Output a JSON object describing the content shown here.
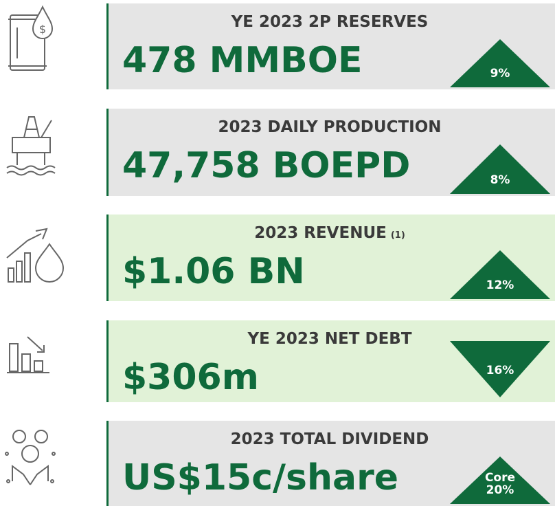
{
  "metrics": [
    {
      "title": "YE 2023 2P RESERVES",
      "value": "478 MMBOE",
      "direction": "up",
      "badge_lines": [
        "9%"
      ]
    },
    {
      "title": "2023 DAILY PRODUCTION",
      "value": "47,758 BOEPD",
      "direction": "up",
      "badge_lines": [
        "8%"
      ]
    },
    {
      "title": "2023 REVENUE",
      "note": "(1)",
      "value": "$1.06 BN",
      "direction": "up",
      "badge_lines": [
        "12%"
      ]
    },
    {
      "title": "YE 2023 NET DEBT",
      "value": "$306m",
      "direction": "down",
      "badge_lines": [
        "16%"
      ]
    },
    {
      "title": "2023 TOTAL DIVIDEND",
      "value": "US$15c/share",
      "direction": "up",
      "badge_lines": [
        "Core",
        "20%"
      ]
    }
  ]
}
